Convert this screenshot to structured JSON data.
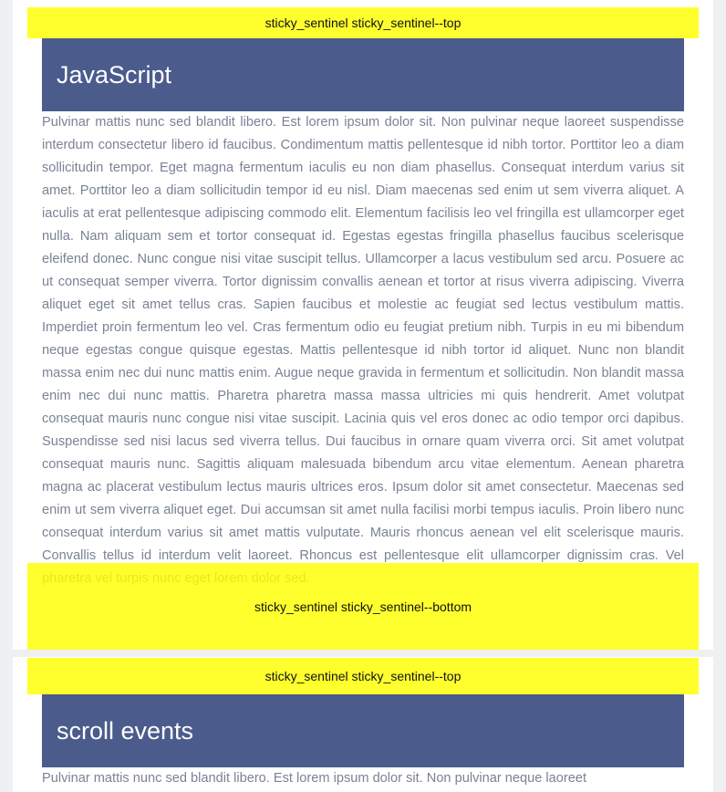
{
  "sections": [
    {
      "sentinel_top": "sticky_sentinel sticky_sentinel--top",
      "title": "JavaScript",
      "paragraph": "Pulvinar mattis nunc sed blandit libero. Est lorem ipsum dolor sit. Non pulvinar neque laoreet suspendisse interdum consectetur libero id faucibus. Condimentum mattis pellentesque id nibh tortor. Porttitor leo a diam sollicitudin tempor. Eget magna fermentum iaculis eu non diam phasellus. Consequat interdum varius sit amet. Porttitor leo a diam sollicitudin tempor id eu nisl. Diam maecenas sed enim ut sem viverra aliquet. A iaculis at erat pellentesque adipiscing commodo elit. Elementum facilisis leo vel fringilla est ullamcorper eget nulla. Nam aliquam sem et tortor consequat id. Egestas egestas fringilla phasellus faucibus scelerisque eleifend donec. Nunc congue nisi vitae suscipit tellus. Ullamcorper a lacus vestibulum sed arcu. Posuere ac ut consequat semper viverra. Tortor dignissim convallis aenean et tortor at risus viverra adipiscing. Viverra aliquet eget sit amet tellus cras. Sapien faucibus et molestie ac feugiat sed lectus vestibulum mattis. Imperdiet proin fermentum leo vel. Cras fermentum odio eu feugiat pretium nibh. Turpis in eu mi bibendum neque egestas congue quisque egestas. Mattis pellentesque id nibh tortor id aliquet. Nunc non blandit massa enim nec dui nunc mattis enim. Augue neque gravida in fermentum et sollicitudin. Non blandit massa enim nec dui nunc mattis. Pharetra pharetra massa massa ultricies mi quis hendrerit. Amet volutpat consequat mauris nunc congue nisi vitae suscipit. Lacinia quis vel eros donec ac odio tempor orci dapibus. Suspendisse sed nisi lacus sed viverra tellus. Dui faucibus in ornare quam viverra orci. Sit amet volutpat consequat mauris nunc. Sagittis aliquam malesuada bibendum arcu vitae elementum. Aenean pharetra magna ac placerat vestibulum lectus mauris ultrices eros. Ipsum dolor sit amet consectetur. Maecenas sed enim ut sem viverra aliquet eget. Dui accumsan sit amet nulla facilisi morbi tempus iaculis. Proin libero nunc consequat interdum varius sit amet mattis vulputate. Mauris rhoncus aenean vel elit scelerisque mauris. Convallis tellus id interdum velit laoreet. Rhoncus est pellentesque elit ullamcorper dignissim cras. Vel pharetra vel turpis nunc eget lorem dolor sed.",
      "sentinel_bottom": "sticky_sentinel sticky_sentinel--bottom"
    },
    {
      "sentinel_top": "sticky_sentinel sticky_sentinel--top",
      "title": "scroll events",
      "paragraph": "Pulvinar mattis nunc sed blandit libero. Est lorem ipsum dolor sit. Non pulvinar neque laoreet"
    }
  ],
  "colors": {
    "header_bg": "#4a5b8c",
    "sentinel_bg": "#ffff00",
    "body_text": "#7a8294",
    "gutter": "#eef0f2"
  }
}
